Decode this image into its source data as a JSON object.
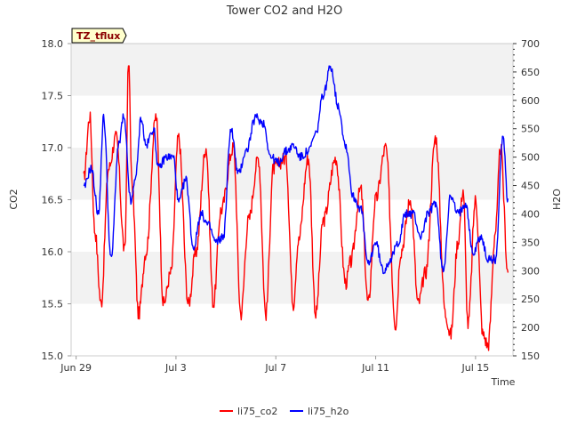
{
  "chart_data": {
    "type": "line",
    "title": "Tower CO2 and H2O",
    "site_tag": "TZ_tflux",
    "xlabel": "Time",
    "ylabel_left": "CO2",
    "ylabel_right": "H2O",
    "xlim_days": [
      -0.2,
      17.5
    ],
    "x_ticks": [
      {
        "day": 0,
        "label": "Jun 29"
      },
      {
        "day": 4,
        "label": "Jul 3"
      },
      {
        "day": 8,
        "label": "Jul 7"
      },
      {
        "day": 12,
        "label": "Jul 11"
      },
      {
        "day": 16,
        "label": "Jul 15"
      }
    ],
    "ylim_left": [
      15.0,
      18.0
    ],
    "yticks_left": [
      "15.0",
      "15.5",
      "16.0",
      "16.5",
      "17.0",
      "17.5",
      "18.0"
    ],
    "ylim_right": [
      150,
      700
    ],
    "yticks_right": [
      "150",
      "200",
      "250",
      "300",
      "350",
      "400",
      "450",
      "500",
      "550",
      "600",
      "650",
      "700"
    ],
    "grid": "horizontal bands",
    "legend_position": "bottom-center",
    "series": [
      {
        "name": "li75_co2",
        "axis": "left",
        "color": "#ff0000",
        "x_days": [
          0.3,
          0.55,
          0.75,
          1.0,
          1.3,
          1.6,
          1.95,
          2.1,
          2.25,
          2.5,
          2.8,
          3.2,
          3.5,
          3.8,
          4.1,
          4.5,
          4.8,
          5.2,
          5.5,
          5.8,
          6.3,
          6.6,
          6.9,
          7.3,
          7.6,
          7.9,
          8.4,
          8.7,
          8.9,
          9.3,
          9.6,
          9.9,
          10.4,
          10.8,
          11.0,
          11.4,
          11.7,
          12.0,
          12.4,
          12.8,
          13.0,
          13.4,
          13.7,
          14.0,
          14.4,
          14.8,
          15.0,
          15.3,
          15.5,
          15.7,
          16.0,
          16.3,
          16.5,
          16.8,
          17.0,
          17.3
        ],
        "values": [
          16.7,
          17.3,
          16.2,
          15.5,
          16.8,
          17.1,
          16.0,
          17.8,
          16.6,
          15.4,
          16.0,
          17.3,
          15.5,
          15.8,
          17.1,
          15.5,
          16.0,
          17.0,
          15.5,
          16.4,
          17.0,
          15.4,
          16.3,
          16.9,
          15.4,
          16.8,
          16.9,
          15.5,
          16.1,
          16.9,
          15.4,
          16.3,
          16.9,
          15.7,
          15.9,
          16.6,
          15.5,
          16.5,
          17.0,
          15.3,
          16.0,
          16.5,
          15.5,
          15.8,
          17.1,
          15.4,
          15.2,
          16.1,
          16.6,
          15.3,
          16.5,
          15.2,
          15.1,
          16.2,
          17.0,
          15.8
        ]
      },
      {
        "name": "li75_h2o",
        "axis": "right",
        "color": "#0000ff",
        "x_days": [
          0.3,
          0.6,
          0.9,
          1.1,
          1.4,
          1.7,
          1.9,
          2.2,
          2.4,
          2.6,
          2.8,
          3.1,
          3.3,
          3.6,
          3.9,
          4.1,
          4.4,
          4.7,
          5.0,
          5.3,
          5.6,
          5.9,
          6.2,
          6.5,
          6.8,
          7.2,
          7.5,
          7.8,
          8.1,
          8.4,
          8.7,
          9.0,
          9.3,
          9.6,
          9.9,
          10.2,
          10.5,
          10.8,
          11.1,
          11.4,
          11.7,
          12.0,
          12.3,
          12.6,
          12.9,
          13.2,
          13.5,
          13.8,
          14.1,
          14.4,
          14.7,
          15.0,
          15.3,
          15.6,
          15.9,
          16.2,
          16.5,
          16.8,
          17.1,
          17.3
        ],
        "values": [
          445,
          480,
          400,
          570,
          320,
          520,
          570,
          420,
          470,
          570,
          520,
          550,
          480,
          500,
          500,
          420,
          460,
          340,
          400,
          380,
          350,
          360,
          550,
          470,
          510,
          570,
          560,
          500,
          490,
          510,
          520,
          500,
          510,
          540,
          610,
          660,
          590,
          520,
          430,
          410,
          310,
          350,
          300,
          320,
          350,
          400,
          400,
          360,
          400,
          420,
          300,
          430,
          400,
          420,
          330,
          360,
          320,
          320,
          540,
          420
        ]
      }
    ]
  },
  "legend": {
    "items": [
      {
        "label": "li75_co2",
        "color": "#ff0000"
      },
      {
        "label": "li75_h2o",
        "color": "#0000ff"
      }
    ]
  }
}
